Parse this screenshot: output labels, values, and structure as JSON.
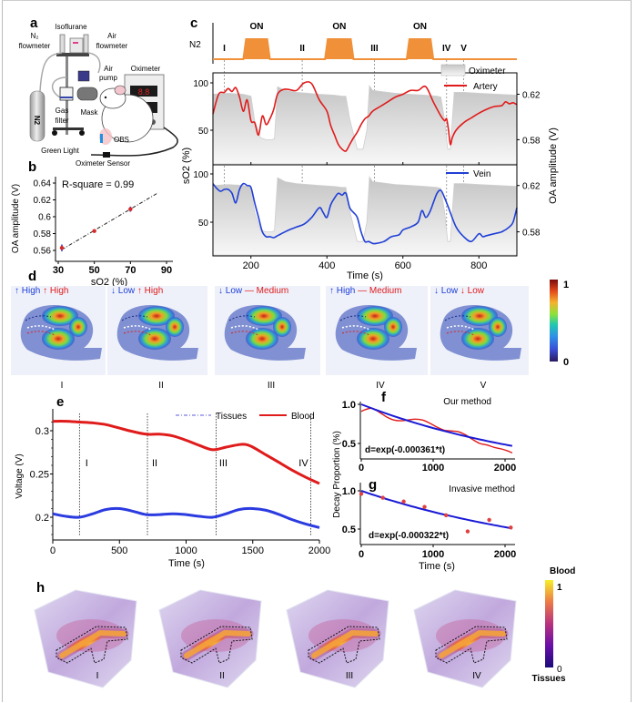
{
  "panel_labels": {
    "a": "a",
    "b": "b",
    "c": "c",
    "d": "d",
    "e": "e",
    "f": "f",
    "g": "g",
    "h": "h"
  },
  "panel_a": {
    "labels": {
      "n2_flowmeter": "N2\nflowmeter",
      "isoflurane": "Isoflurane",
      "air_flowmeter": "Air\nflowmeter",
      "air_pump": "Air\npump",
      "oximeter": "Oximeter",
      "gas_filter": "Gas\nfilter",
      "mask": "Mask",
      "n2_tank": "N2",
      "obs": "OBS",
      "green_light": "Green Light",
      "oximeter_sensor": "Oximeter Sensor"
    },
    "oximeter_display": [
      "8.8",
      "888"
    ]
  },
  "chart_data": [
    {
      "id": "b",
      "type": "scatter",
      "title": "",
      "annotation": "R-square = 0.99",
      "xlabel": "sO2 (%)",
      "ylabel": "OA amplitude (V)",
      "xlim": [
        30,
        90
      ],
      "ylim": [
        0.555,
        0.645
      ],
      "xticks": [
        30,
        50,
        70,
        90
      ],
      "yticks": [
        0.56,
        0.58,
        0.6,
        0.62,
        0.64
      ],
      "ytick_labels": [
        "0.56",
        "0.58",
        "0.6",
        "0.62",
        "0.64"
      ],
      "points": [
        {
          "x": 32,
          "y": 0.563,
          "err": 0.004
        },
        {
          "x": 50,
          "y": 0.583,
          "err": 0.001
        },
        {
          "x": 70,
          "y": 0.609,
          "err": 0.003
        }
      ],
      "fit_line": {
        "x": [
          32,
          85
        ],
        "y": [
          0.561,
          0.628
        ]
      },
      "colors": {
        "points": "#d62a2a",
        "error": "#2b2bd6",
        "fit": "#222222"
      }
    },
    {
      "id": "c",
      "type": "line",
      "n2_trace": {
        "label": "N2",
        "on_label": "ON",
        "pulses": [
          [
            180,
            250
          ],
          [
            395,
            470
          ],
          [
            610,
            680
          ]
        ],
        "color": "#f0913a"
      },
      "phase_markers": [
        {
          "label": "I",
          "t": 130
        },
        {
          "label": "II",
          "t": 335
        },
        {
          "label": "III",
          "t": 525
        },
        {
          "label": "IV",
          "t": 715
        },
        {
          "label": "V",
          "t": 760
        }
      ],
      "xlim": [
        100,
        900
      ],
      "xticks": [
        200,
        400,
        600,
        800
      ],
      "xlabel": "Time (s)",
      "ylabel_left": "sO2 (%)",
      "ylabel_right": "OA amplitude (V)",
      "yticks_left": [
        50,
        100
      ],
      "yticks_right": [
        "0.58",
        "0.62"
      ],
      "ylim_left": [
        20,
        110
      ],
      "legend": {
        "oximeter": "Oximeter",
        "artery": "Artery",
        "vein": "Vein"
      },
      "oximeter": {
        "t": [
          100,
          140,
          180,
          200,
          210,
          225,
          240,
          255,
          262,
          270,
          290,
          320,
          350,
          380,
          420,
          440,
          450,
          460,
          480,
          495,
          505,
          512,
          520,
          540,
          580,
          620,
          660,
          690,
          700,
          710,
          718,
          725,
          735,
          760,
          800,
          850,
          900
        ],
        "v": [
          88,
          89,
          88,
          86,
          60,
          42,
          40,
          40,
          41,
          96,
          92,
          90,
          89,
          88,
          87,
          86,
          86,
          62,
          30,
          30,
          50,
          97,
          92,
          91,
          89,
          88,
          87,
          86,
          85,
          60,
          30,
          30,
          90,
          90,
          89,
          88,
          87
        ]
      },
      "series": [
        {
          "name": "Artery",
          "color": "#e01b1b",
          "t": [
            100,
            115,
            130,
            140,
            150,
            160,
            170,
            180,
            190,
            200,
            210,
            220,
            230,
            240,
            250,
            260,
            270,
            285,
            300,
            320,
            340,
            360,
            380,
            400,
            410,
            420,
            430,
            440,
            450,
            460,
            470,
            480,
            490,
            500,
            510,
            520,
            540,
            560,
            580,
            600,
            620,
            640,
            660,
            680,
            700,
            710,
            715,
            720,
            725,
            730,
            740,
            760,
            780,
            800,
            820,
            840,
            860,
            870,
            880,
            890,
            900
          ],
          "v": [
            67,
            88,
            90,
            94,
            91,
            95,
            85,
            70,
            82,
            60,
            58,
            45,
            65,
            56,
            62,
            72,
            88,
            93,
            93,
            92,
            100,
            99,
            82,
            70,
            55,
            45,
            35,
            30,
            28,
            35,
            42,
            48,
            56,
            62,
            65,
            70,
            75,
            80,
            85,
            88,
            92,
            92,
            96,
            80,
            65,
            60,
            62,
            50,
            35,
            42,
            50,
            58,
            63,
            68,
            72,
            75,
            76,
            80,
            78,
            79,
            77
          ]
        },
        {
          "name": "Vein",
          "color": "#1f3fd6",
          "t": [
            100,
            110,
            120,
            130,
            140,
            150,
            160,
            170,
            180,
            190,
            200,
            210,
            220,
            230,
            240,
            250,
            260,
            270,
            280,
            300,
            320,
            340,
            360,
            380,
            390,
            400,
            410,
            420,
            430,
            440,
            450,
            460,
            470,
            480,
            490,
            500,
            510,
            520,
            530,
            550,
            570,
            590,
            600,
            620,
            640,
            650,
            660,
            670,
            680,
            690,
            700,
            710,
            720,
            740,
            760,
            780,
            800,
            810,
            820,
            840,
            860,
            880,
            890,
            900
          ],
          "v": [
            90,
            85,
            82,
            84,
            84,
            80,
            70,
            84,
            90,
            88,
            86,
            70,
            55,
            40,
            35,
            35,
            34,
            36,
            38,
            42,
            45,
            48,
            55,
            65,
            60,
            55,
            68,
            75,
            80,
            78,
            80,
            65,
            60,
            55,
            40,
            30,
            30,
            28,
            28,
            30,
            35,
            37,
            42,
            45,
            50,
            62,
            55,
            60,
            70,
            80,
            83,
            75,
            65,
            45,
            35,
            30,
            38,
            35,
            36,
            38,
            40,
            45,
            50,
            65
          ]
        }
      ]
    },
    {
      "id": "e",
      "type": "line",
      "xlabel": "Time (s)",
      "ylabel": "Voltage (V)",
      "xlim": [
        0,
        2000
      ],
      "ylim": [
        0.175,
        0.325
      ],
      "xticks": [
        0,
        500,
        1000,
        1500,
        2000
      ],
      "yticks": [
        0.2,
        0.25,
        0.3
      ],
      "ytick_labels": [
        "0.2",
        "0.25",
        "0.3"
      ],
      "legend": {
        "tissues": "Tissues",
        "blood": "Blood"
      },
      "phase_markers": [
        {
          "label": "I",
          "t": 200
        },
        {
          "label": "II",
          "t": 710
        },
        {
          "label": "III",
          "t": 1225
        },
        {
          "label": "IV",
          "t": 1935
        }
      ],
      "series": [
        {
          "name": "Blood",
          "color": "#e01b1b",
          "t": [
            0,
            100,
            200,
            300,
            400,
            500,
            600,
            700,
            800,
            900,
            1000,
            1100,
            1200,
            1300,
            1400,
            1450,
            1500,
            1600,
            1700,
            1800,
            1900,
            2000
          ],
          "v": [
            0.311,
            0.311,
            0.31,
            0.309,
            0.307,
            0.303,
            0.299,
            0.296,
            0.296,
            0.294,
            0.289,
            0.283,
            0.278,
            0.281,
            0.284,
            0.284,
            0.281,
            0.272,
            0.263,
            0.254,
            0.246,
            0.239
          ]
        },
        {
          "name": "Tissues",
          "color": "#2b3be0",
          "t": [
            0,
            100,
            200,
            300,
            400,
            500,
            600,
            700,
            800,
            900,
            1000,
            1100,
            1200,
            1300,
            1400,
            1500,
            1600,
            1700,
            1800,
            1900,
            2000
          ],
          "v": [
            0.204,
            0.201,
            0.2,
            0.204,
            0.209,
            0.21,
            0.207,
            0.203,
            0.203,
            0.204,
            0.203,
            0.201,
            0.2,
            0.204,
            0.209,
            0.21,
            0.208,
            0.203,
            0.197,
            0.192,
            0.188
          ]
        }
      ]
    },
    {
      "id": "f",
      "type": "line",
      "title": "Our method",
      "equation": "d=exp(-0.000361*t)",
      "ylabel": "Decay Proportion (%)",
      "xlim": [
        0,
        2100
      ],
      "ylim": [
        0.33,
        1.03
      ],
      "xticks": [
        0,
        1000,
        2000
      ],
      "yticks": [
        0.5,
        1.0
      ],
      "ytick_labels": [
        "0.5",
        "1.0"
      ],
      "fit_rate": 0.000361,
      "series": [
        {
          "name": "measured",
          "color": "#e01b1b",
          "t": [
            0,
            50,
            150,
            250,
            350,
            450,
            550,
            650,
            750,
            850,
            950,
            1050,
            1150,
            1250,
            1350,
            1450,
            1550,
            1650,
            1750,
            1850,
            1950,
            2050,
            2100
          ],
          "v": [
            0.91,
            0.93,
            0.95,
            0.9,
            0.84,
            0.8,
            0.79,
            0.8,
            0.81,
            0.8,
            0.76,
            0.71,
            0.67,
            0.66,
            0.65,
            0.61,
            0.55,
            0.5,
            0.48,
            0.45,
            0.43,
            0.4,
            0.38
          ]
        }
      ],
      "fit_color": "#1a1ad6"
    },
    {
      "id": "g",
      "type": "scatter",
      "title": "Invasive method",
      "equation": "d=exp(-0.000322*t)",
      "xlabel": "Time (s)",
      "xlim": [
        0,
        2100
      ],
      "ylim": [
        0.33,
        1.03
      ],
      "xticks": [
        0,
        1000,
        2000
      ],
      "yticks": [
        0.5,
        1.0
      ],
      "ytick_labels": [
        "0.5",
        "1.0"
      ],
      "fit_rate": 0.000322,
      "points": [
        {
          "x": 0,
          "y": 0.96
        },
        {
          "x": 300,
          "y": 0.91
        },
        {
          "x": 590,
          "y": 0.86
        },
        {
          "x": 880,
          "y": 0.79
        },
        {
          "x": 1180,
          "y": 0.68
        },
        {
          "x": 1480,
          "y": 0.47
        },
        {
          "x": 1780,
          "y": 0.62
        },
        {
          "x": 2080,
          "y": 0.52
        }
      ],
      "fit_color": "#1a1ad6",
      "point_color": "#e04040"
    }
  ],
  "panel_d": {
    "images": [
      {
        "roman": "I",
        "blue_arrow": "up",
        "blue_text": "High",
        "red_arrow": "up",
        "red_text": "High"
      },
      {
        "roman": "II",
        "blue_arrow": "down",
        "blue_text": "Low",
        "red_arrow": "up",
        "red_text": "High"
      },
      {
        "roman": "III",
        "blue_arrow": "down",
        "blue_text": "Low",
        "red_arrow": "flat",
        "red_text": "Medium"
      },
      {
        "roman": "IV",
        "blue_arrow": "up",
        "blue_text": "High",
        "red_arrow": "flat",
        "red_text": "Medium"
      },
      {
        "roman": "V",
        "blue_arrow": "down",
        "blue_text": "Low",
        "red_arrow": "down",
        "red_text": "Low"
      }
    ],
    "colorbar": {
      "max": "1",
      "min": "0"
    }
  },
  "panel_h": {
    "images": [
      "I",
      "II",
      "III",
      "IV"
    ],
    "colorbar": {
      "top_label": "Blood",
      "bottom_label": "Tissues",
      "max": "1",
      "min": "0"
    }
  },
  "colors": {
    "artery": "#e01b1b",
    "vein": "#1f3fd6",
    "n2": "#f0913a",
    "oximeter_fill": "#c8c8c8"
  }
}
